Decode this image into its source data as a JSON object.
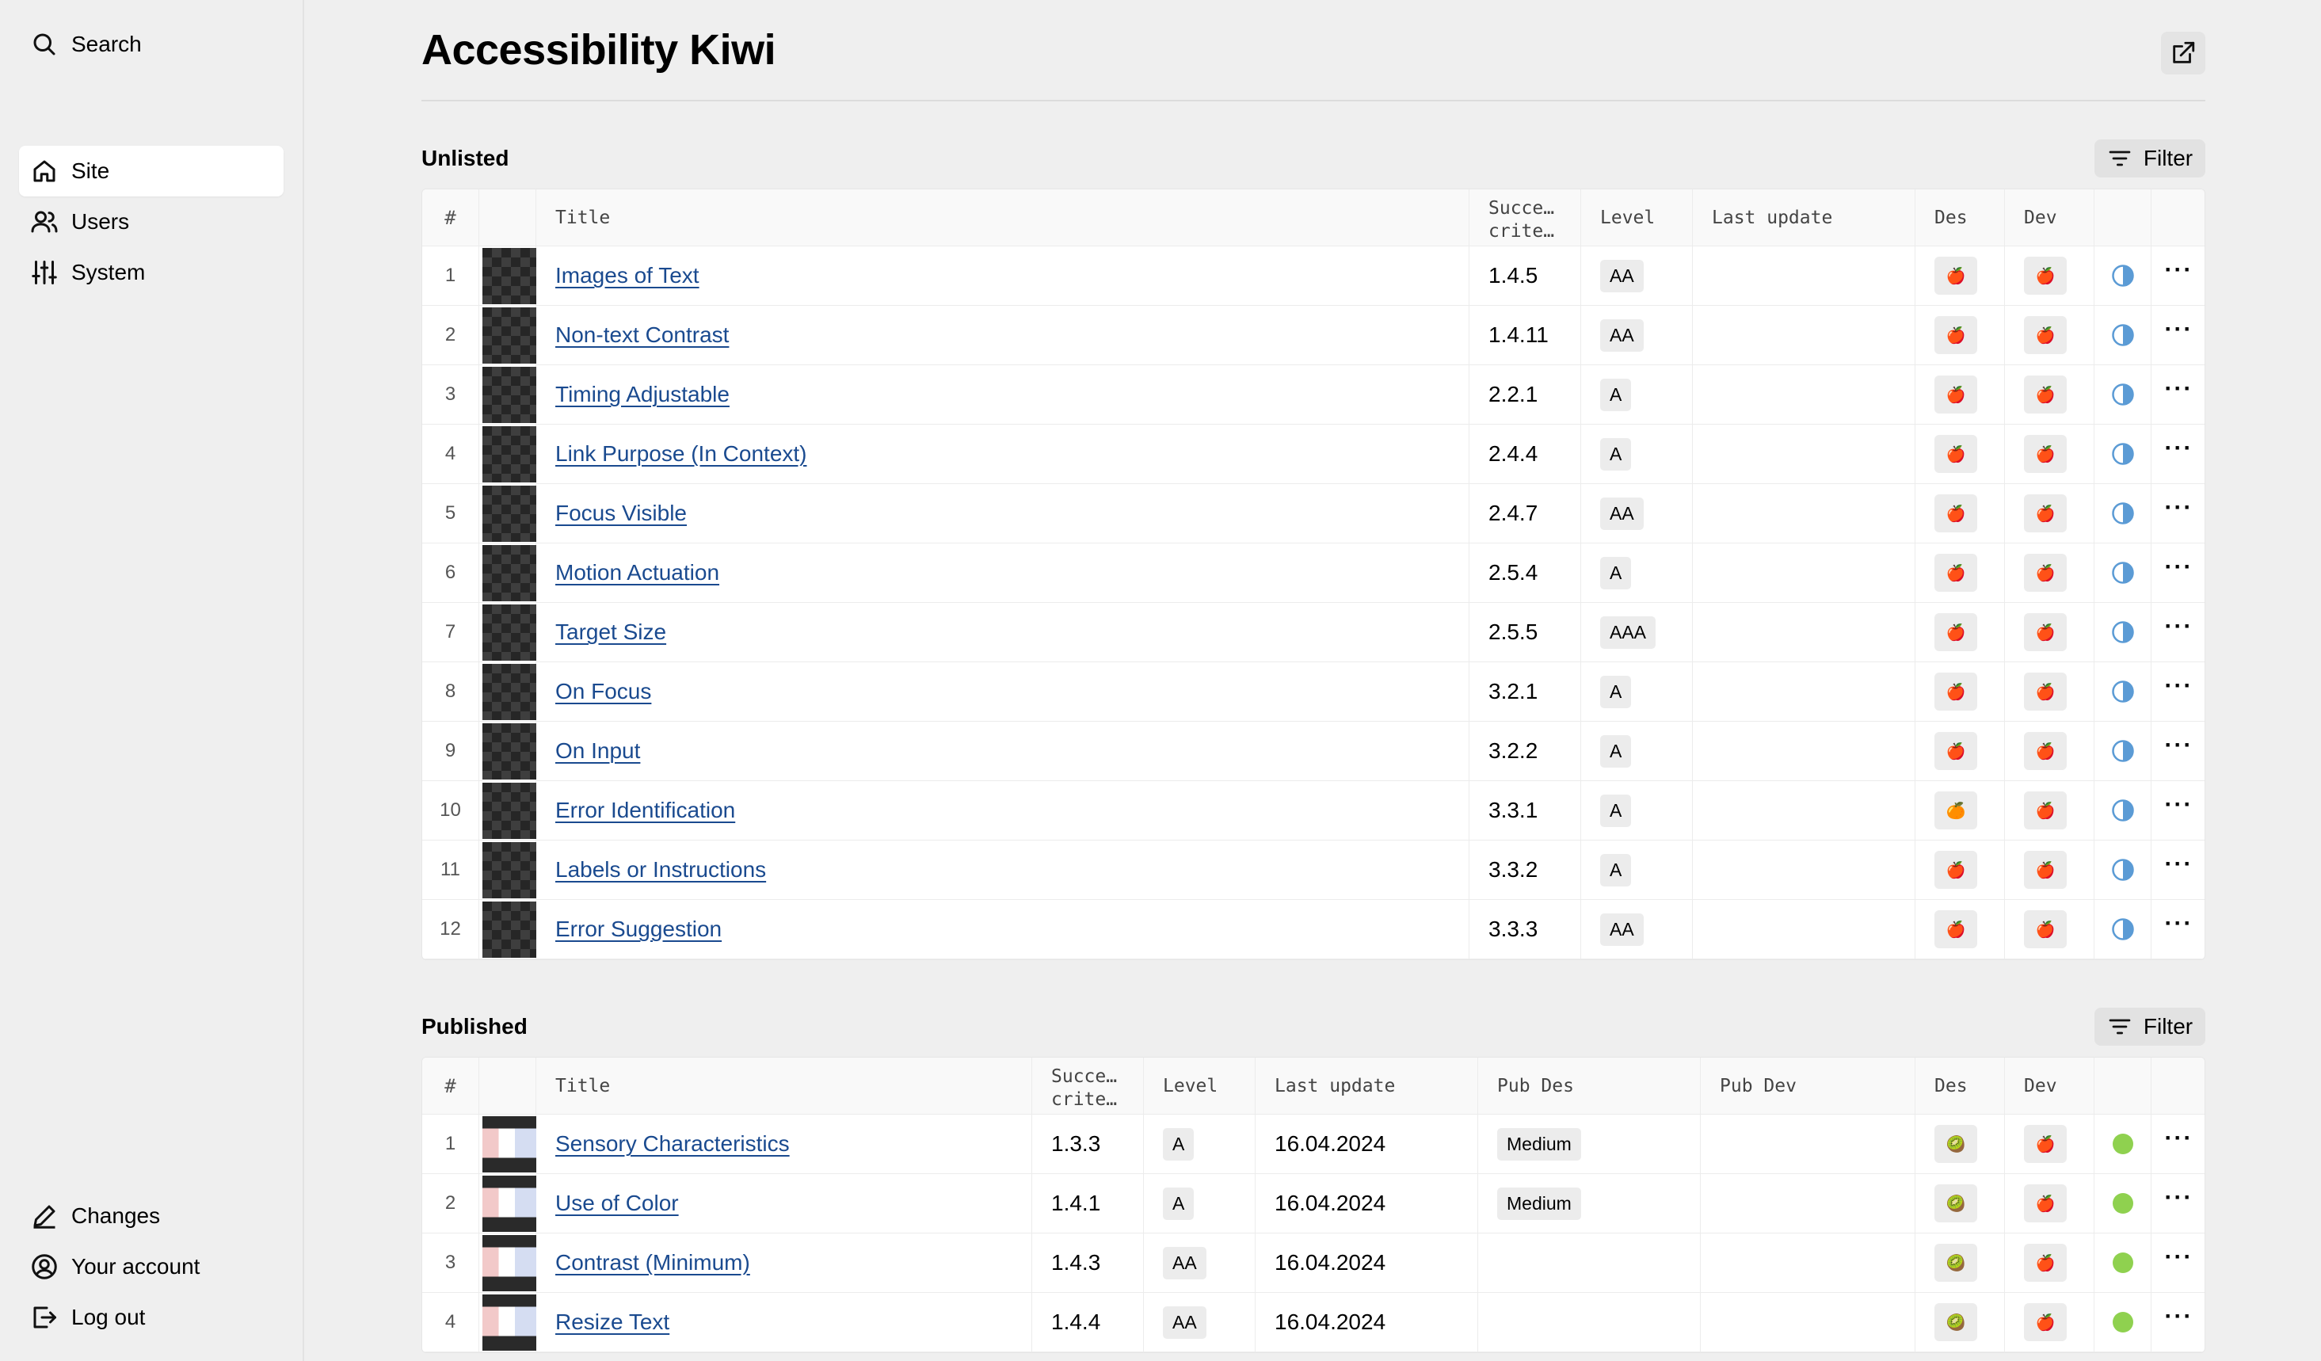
{
  "sidebar": {
    "search": "Search",
    "items": [
      {
        "label": "Site",
        "icon": "home-icon",
        "active": true
      },
      {
        "label": "Users",
        "icon": "users-icon"
      },
      {
        "label": "System",
        "icon": "sliders-icon"
      }
    ],
    "bottom": [
      {
        "label": "Changes",
        "icon": "pencil-icon"
      },
      {
        "label": "Your account",
        "icon": "user-circle-icon"
      },
      {
        "label": "Log out",
        "icon": "logout-icon"
      }
    ]
  },
  "page": {
    "title": "Accessibility Kiwi",
    "open_icon": "external-link-icon"
  },
  "unlisted": {
    "title": "Unlisted",
    "filter_label": "Filter",
    "headers": {
      "num": "#",
      "title": "Title",
      "criteria_1": "Succe…",
      "criteria_2": "crite…",
      "level": "Level",
      "last_update": "Last update",
      "des": "Des",
      "dev": "Dev"
    },
    "rows": [
      {
        "num": "1",
        "title": "Images of Text",
        "criteria": "1.4.5",
        "level": "AA",
        "des": "🍎",
        "dev": "🍎"
      },
      {
        "num": "2",
        "title": "Non-text Contrast",
        "criteria": "1.4.11",
        "level": "AA",
        "des": "🍎",
        "dev": "🍎"
      },
      {
        "num": "3",
        "title": "Timing Adjustable",
        "criteria": "2.2.1",
        "level": "A",
        "des": "🍎",
        "dev": "🍎"
      },
      {
        "num": "4",
        "title": "Link Purpose (In Context)",
        "criteria": "2.4.4",
        "level": "A",
        "des": "🍎",
        "dev": "🍎"
      },
      {
        "num": "5",
        "title": "Focus Visible",
        "criteria": "2.4.7",
        "level": "AA",
        "des": "🍎",
        "dev": "🍎"
      },
      {
        "num": "6",
        "title": "Motion Actuation",
        "criteria": "2.5.4",
        "level": "A",
        "des": "🍎",
        "dev": "🍎"
      },
      {
        "num": "7",
        "title": "Target Size",
        "criteria": "2.5.5",
        "level": "AAA",
        "des": "🍎",
        "dev": "🍎"
      },
      {
        "num": "8",
        "title": "On Focus",
        "criteria": "3.2.1",
        "level": "A",
        "des": "🍎",
        "dev": "🍎"
      },
      {
        "num": "9",
        "title": "On Input",
        "criteria": "3.2.2",
        "level": "A",
        "des": "🍎",
        "dev": "🍎"
      },
      {
        "num": "10",
        "title": "Error Identification",
        "criteria": "3.3.1",
        "level": "A",
        "des": "🍊",
        "dev": "🍎"
      },
      {
        "num": "11",
        "title": "Labels or Instructions",
        "criteria": "3.3.2",
        "level": "A",
        "des": "🍎",
        "dev": "🍎"
      },
      {
        "num": "12",
        "title": "Error Suggestion",
        "criteria": "3.3.3",
        "level": "AA",
        "des": "🍎",
        "dev": "🍎"
      }
    ],
    "status_icon": "half-circle-icon",
    "more_label": "···"
  },
  "published": {
    "title": "Published",
    "filter_label": "Filter",
    "headers": {
      "num": "#",
      "title": "Title",
      "criteria_1": "Succe…",
      "criteria_2": "crite…",
      "level": "Level",
      "last_update": "Last update",
      "pub_des": "Pub Des",
      "pub_dev": "Pub Dev",
      "des": "Des",
      "dev": "Dev"
    },
    "rows": [
      {
        "num": "1",
        "title": "Sensory Characteristics",
        "criteria": "1.3.3",
        "level": "A",
        "last_update": "16.04.2024",
        "pub_des": "Medium",
        "des": "🥝",
        "dev": "🍎"
      },
      {
        "num": "2",
        "title": "Use of Color",
        "criteria": "1.4.1",
        "level": "A",
        "last_update": "16.04.2024",
        "pub_des": "Medium",
        "des": "🥝",
        "dev": "🍎"
      },
      {
        "num": "3",
        "title": "Contrast (Minimum)",
        "criteria": "1.4.3",
        "level": "AA",
        "last_update": "16.04.2024",
        "pub_des": "",
        "des": "🥝",
        "dev": "🍎"
      },
      {
        "num": "4",
        "title": "Resize Text",
        "criteria": "1.4.4",
        "level": "AA",
        "last_update": "16.04.2024",
        "pub_des": "",
        "des": "🥝",
        "dev": "🍎"
      }
    ],
    "status_color": "#8fd14f",
    "more_label": "···"
  },
  "colors": {
    "link": "#1a4a8f",
    "published_status": "#8fd14f",
    "unlisted_status": "#5b9bd5"
  }
}
